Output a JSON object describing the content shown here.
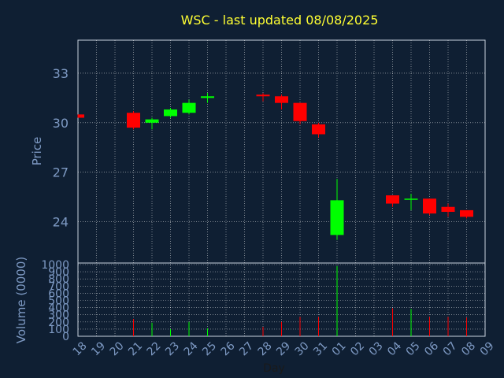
{
  "chart_data": {
    "type": "candlestick",
    "title": "WSC - last updated 08/08/2025",
    "ylabel": "Price",
    "volume_label": "Volume (0000)",
    "xlabel": "Day",
    "ylim": [
      21.5,
      35
    ],
    "y_ticks": [
      "24",
      "27",
      "30",
      "33"
    ],
    "volume_ylim": [
      0,
      1000
    ],
    "volume_ticks": [
      "0",
      "100",
      "200",
      "300",
      "400",
      "500",
      "600",
      "700",
      "800",
      "900",
      "1000"
    ],
    "days": [
      "18",
      "19",
      "20",
      "21",
      "22",
      "23",
      "24",
      "25",
      "26",
      "27",
      "28",
      "29",
      "30",
      "31",
      "01",
      "02",
      "03",
      "04",
      "05",
      "06",
      "07",
      "08",
      "09"
    ],
    "candles": [
      {
        "day": "18",
        "open": 30.5,
        "close": 30.3,
        "high": 30.5,
        "low": 30.3,
        "volume": 0
      },
      {
        "day": "21",
        "open": 30.6,
        "close": 29.7,
        "high": 30.7,
        "low": 29.6,
        "volume": 240
      },
      {
        "day": "22",
        "open": 30.0,
        "close": 30.2,
        "high": 30.3,
        "low": 29.6,
        "volume": 190
      },
      {
        "day": "23",
        "open": 30.4,
        "close": 30.8,
        "high": 30.9,
        "low": 30.3,
        "volume": 100
      },
      {
        "day": "24",
        "open": 30.6,
        "close": 31.2,
        "high": 31.4,
        "low": 30.5,
        "volume": 200
      },
      {
        "day": "25",
        "open": 31.5,
        "close": 31.6,
        "high": 31.8,
        "low": 31.2,
        "volume": 110
      },
      {
        "day": "28",
        "open": 31.7,
        "close": 31.6,
        "high": 31.8,
        "low": 31.3,
        "volume": 130
      },
      {
        "day": "29",
        "open": 31.6,
        "close": 31.2,
        "high": 31.7,
        "low": 30.8,
        "volume": 200
      },
      {
        "day": "30",
        "open": 31.2,
        "close": 30.1,
        "high": 31.2,
        "low": 29.9,
        "volume": 270
      },
      {
        "day": "31",
        "open": 29.9,
        "close": 29.3,
        "high": 30.0,
        "low": 29.1,
        "volume": 270
      },
      {
        "day": "01",
        "open": 23.2,
        "close": 25.3,
        "high": 26.6,
        "low": 22.9,
        "volume": 980
      },
      {
        "day": "04",
        "open": 25.6,
        "close": 25.1,
        "high": 25.6,
        "low": 24.9,
        "volume": 390
      },
      {
        "day": "05",
        "open": 25.4,
        "close": 25.4,
        "high": 25.7,
        "low": 24.7,
        "volume": 380
      },
      {
        "day": "06",
        "open": 25.4,
        "close": 24.5,
        "high": 25.4,
        "low": 24.4,
        "volume": 270
      },
      {
        "day": "07",
        "open": 24.9,
        "close": 24.6,
        "high": 25.1,
        "low": 24.3,
        "volume": 270
      },
      {
        "day": "08",
        "open": 24.7,
        "close": 24.3,
        "high": 24.7,
        "low": 24.2,
        "volume": 260
      }
    ]
  },
  "colors": {
    "background": "#0f1f33",
    "title": "#ffff33",
    "axis_text": "#7e9ac4",
    "grid": "#ffffff",
    "up": "#00ff00",
    "down": "#ff0000",
    "frame": "#c9d3df"
  }
}
